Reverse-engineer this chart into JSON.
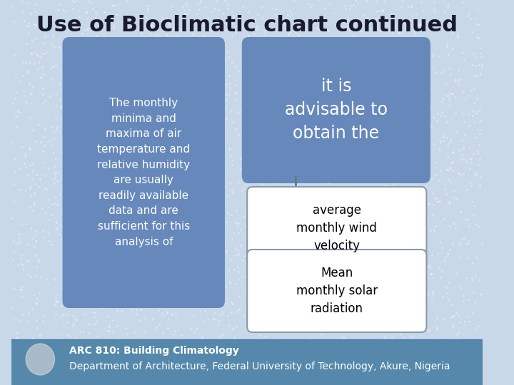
{
  "title": "Use of Bioclimatic chart continued",
  "title_fontsize": 22,
  "title_fontweight": "bold",
  "title_color": "#1a1a2e",
  "bg_color": "#c8d8e8",
  "box_blue_color": "#6688bb",
  "box_white_color": "#ffffff",
  "left_box_text": "The monthly\nminima and\nmaxima of air\ntemperature and\nrelative humidity\nare usually\nreadily available\ndata and are\nsufficient for this\nanalysis of",
  "top_right_text": "it is\nadvisable to\nobtain the",
  "mid_right_text": "average\nmonthly wind\nvelocity",
  "bot_right_text": "Mean\nmonthly solar\nradiation",
  "footer_bg": "#5588aa",
  "footer_line1": "ARC 810: Building Climatology",
  "footer_line2": "Department of Architecture, Federal University of Technology, Akure, Nigeria",
  "footer_text_color": "#ffffff",
  "footer_line1_fontsize": 10,
  "footer_line2_fontsize": 10
}
